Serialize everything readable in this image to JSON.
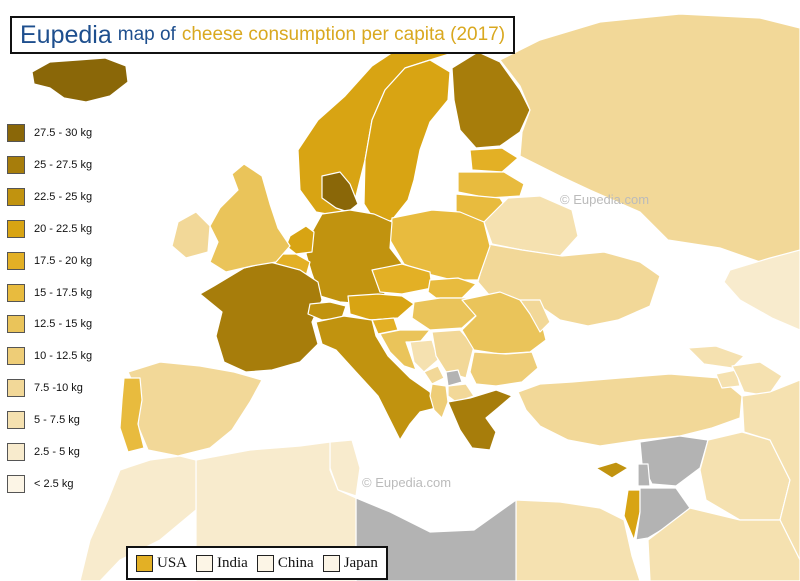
{
  "title": {
    "brand": "Eupedia",
    "rest": "map of",
    "highlight": "cheese consumption per capita (2017)"
  },
  "watermarks": [
    "© Eupedia.com",
    "© Eupedia.com"
  ],
  "colors": {
    "sea": "#ffffff",
    "no_data": "#b3b3b3",
    "border": "#ffffff",
    "brand_blue": "#1e4f8e",
    "brand_gold": "#d9a81f"
  },
  "legend": [
    {
      "label": "27.5 - 30 kg",
      "color": "#8a6708"
    },
    {
      "label": "25 - 27.5 kg",
      "color": "#a77d0b"
    },
    {
      "label": "22.5 - 25 kg",
      "color": "#c1930f"
    },
    {
      "label": "20 - 22.5 kg",
      "color": "#d8a413"
    },
    {
      "label": "17.5 - 20 kg",
      "color": "#e3b025"
    },
    {
      "label": "15 - 17.5 kg",
      "color": "#e8bb3e"
    },
    {
      "label": "12.5 - 15 kg",
      "color": "#eac45a"
    },
    {
      "label": "10 - 12.5 kg",
      "color": "#eecd77"
    },
    {
      "label": "7.5 -10 kg",
      "color": "#f2d898"
    },
    {
      "label": "5 - 7.5 kg",
      "color": "#f5e1b0"
    },
    {
      "label": "2.5 - 5 kg",
      "color": "#f8ebcd"
    },
    {
      "label": "< 2.5 kg",
      "color": "#fcf5e6"
    }
  ],
  "reference": [
    {
      "label": "USA",
      "color": "#e3b025"
    },
    {
      "label": "India",
      "color": "#fcf5e6"
    },
    {
      "label": "China",
      "color": "#fcf5e6"
    },
    {
      "label": "Japan",
      "color": "#fcf5e6"
    }
  ],
  "countries": [
    {
      "name": "Iceland",
      "color": "#8a6708"
    },
    {
      "name": "Norway",
      "color": "#d8a413"
    },
    {
      "name": "Sweden",
      "color": "#d8a413"
    },
    {
      "name": "Finland",
      "color": "#a77d0b"
    },
    {
      "name": "Denmark",
      "color": "#8a6708"
    },
    {
      "name": "Estonia",
      "color": "#e3b025"
    },
    {
      "name": "Latvia",
      "color": "#e8bb3e"
    },
    {
      "name": "Lithuania",
      "color": "#e8bb3e"
    },
    {
      "name": "Russia",
      "color": "#f2d898"
    },
    {
      "name": "Belarus",
      "color": "#f5e1b0"
    },
    {
      "name": "Ukraine",
      "color": "#f2d898"
    },
    {
      "name": "Poland",
      "color": "#e8bb3e"
    },
    {
      "name": "Germany",
      "color": "#c1930f"
    },
    {
      "name": "Netherlands",
      "color": "#d8a413"
    },
    {
      "name": "Belgium",
      "color": "#e3b025"
    },
    {
      "name": "France",
      "color": "#a77d0b"
    },
    {
      "name": "United Kingdom",
      "color": "#eac45a"
    },
    {
      "name": "Ireland",
      "color": "#f2d898"
    },
    {
      "name": "Spain",
      "color": "#f2d898"
    },
    {
      "name": "Portugal",
      "color": "#e8bb3e"
    },
    {
      "name": "Switzerland",
      "color": "#c1930f"
    },
    {
      "name": "Austria",
      "color": "#d8a413"
    },
    {
      "name": "Czech Republic",
      "color": "#e3b025"
    },
    {
      "name": "Slovakia",
      "color": "#e8bb3e"
    },
    {
      "name": "Hungary",
      "color": "#eac45a"
    },
    {
      "name": "Italy",
      "color": "#c1930f"
    },
    {
      "name": "Slovenia",
      "color": "#e3b025"
    },
    {
      "name": "Croatia",
      "color": "#eac45a"
    },
    {
      "name": "Bosnia",
      "color": "#f5e1b0"
    },
    {
      "name": "Serbia",
      "color": "#f2d898"
    },
    {
      "name": "Montenegro",
      "color": "#f2d898"
    },
    {
      "name": "Kosovo",
      "color": "#b3b3b3"
    },
    {
      "name": "Albania",
      "color": "#eecd77"
    },
    {
      "name": "North Macedonia",
      "color": "#f2d898"
    },
    {
      "name": "Romania",
      "color": "#eac45a"
    },
    {
      "name": "Moldova",
      "color": "#f2d898"
    },
    {
      "name": "Bulgaria",
      "color": "#eecd77"
    },
    {
      "name": "Greece",
      "color": "#a77d0b"
    },
    {
      "name": "Cyprus",
      "color": "#c1930f"
    },
    {
      "name": "Turkey",
      "color": "#f2d898"
    },
    {
      "name": "Georgia",
      "color": "#f5e1b0"
    },
    {
      "name": "Armenia",
      "color": "#f5e1b0"
    },
    {
      "name": "Azerbaijan",
      "color": "#f5e1b0"
    },
    {
      "name": "Kazakhstan",
      "color": "#f8ebcd"
    },
    {
      "name": "Syria",
      "color": "#b3b3b3"
    },
    {
      "name": "Iraq",
      "color": "#f5e1b0"
    },
    {
      "name": "Iran",
      "color": "#f5e1b0"
    },
    {
      "name": "Lebanon",
      "color": "#b3b3b3"
    },
    {
      "name": "Israel",
      "color": "#d8a413"
    },
    {
      "name": "Jordan",
      "color": "#b3b3b3"
    },
    {
      "name": "Saudi Arabia",
      "color": "#f5e1b0"
    },
    {
      "name": "Egypt",
      "color": "#f5e1b0"
    },
    {
      "name": "Libya",
      "color": "#b3b3b3"
    },
    {
      "name": "Tunisia",
      "color": "#f8ebcd"
    },
    {
      "name": "Algeria",
      "color": "#f8ebcd"
    },
    {
      "name": "Morocco",
      "color": "#f8ebcd"
    }
  ]
}
